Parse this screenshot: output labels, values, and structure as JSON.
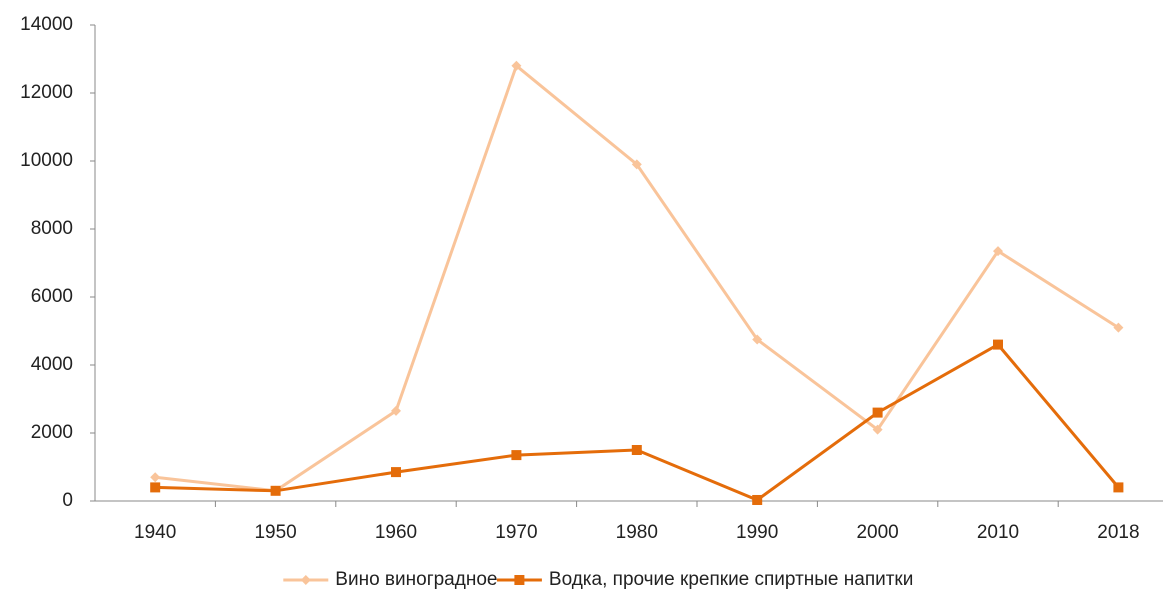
{
  "chart_data": {
    "type": "line",
    "categories": [
      "1940",
      "1950",
      "1960",
      "1970",
      "1980",
      "1990",
      "2000",
      "2010",
      "2018"
    ],
    "series": [
      {
        "name": "Вино виноградное",
        "color": "#f9c49a",
        "marker": "diamond",
        "values": [
          700,
          300,
          2650,
          12800,
          9900,
          4750,
          2100,
          7350,
          5100
        ]
      },
      {
        "name": "Водка, прочие крепкие спиртные напитки",
        "color": "#e46c0a",
        "marker": "square",
        "values": [
          400,
          300,
          850,
          1350,
          1500,
          30,
          2600,
          4600,
          400
        ]
      }
    ],
    "ylim": [
      0,
      14000
    ],
    "yticks": [
      0,
      2000,
      4000,
      6000,
      8000,
      10000,
      12000,
      14000
    ],
    "grid": false,
    "legend": "bottom"
  }
}
